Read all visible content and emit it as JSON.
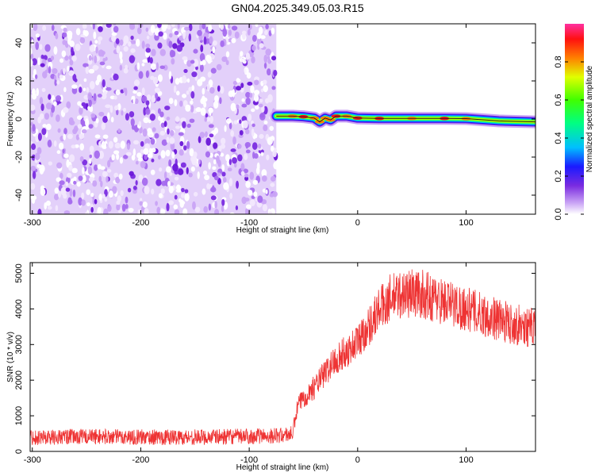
{
  "page": {
    "title": "GN04.2025.349.05.03.R15"
  },
  "chart_data": [
    {
      "type": "heatmap",
      "title": "",
      "xlabel": "Height of straight line (km)",
      "ylabel": "Frequency (Hz)",
      "xlim": [
        -302,
        164
      ],
      "ylim": [
        -50,
        50
      ],
      "x_ticks": [
        -300,
        -200,
        -100,
        0,
        100
      ],
      "y_ticks": [
        -40,
        -20,
        0,
        20,
        40
      ],
      "colorbar": {
        "label": "Normalized spectral amplitude",
        "range": [
          0,
          1
        ],
        "ticks": [
          0.0,
          0.2,
          0.4,
          0.6,
          0.8
        ],
        "colormap": "rainbow (violet-blue-cyan-green-yellow-red-magenta)"
      },
      "noise_region": {
        "x_range": [
          -302,
          -75
        ],
        "freq_range": [
          -50,
          50
        ],
        "dominant_color": "#7a2be0"
      },
      "signal_trace": {
        "x": [
          -75,
          -60,
          -50,
          -40,
          -35,
          -30,
          -25,
          -20,
          -10,
          0,
          20,
          50,
          80,
          100,
          130,
          164
        ],
        "freq": [
          1.5,
          1.5,
          1.2,
          0.5,
          -1.5,
          0.5,
          -0.5,
          1.5,
          1.5,
          0.5,
          0.3,
          0.3,
          0.3,
          0.2,
          -1.0,
          -1.5
        ],
        "peak_amplitude": [
          0.75,
          0.85,
          0.95,
          0.9,
          0.8,
          0.9,
          0.85,
          0.95,
          0.9,
          0.98,
          0.95,
          0.9,
          0.95,
          0.9,
          0.7,
          0.5
        ]
      }
    },
    {
      "type": "line",
      "title": "",
      "xlabel": "Height of straight line (km)",
      "ylabel": "SNR (10 * v/v)",
      "xlim": [
        -302,
        164
      ],
      "ylim": [
        0,
        5300
      ],
      "x_ticks": [
        -300,
        -200,
        -100,
        0,
        100
      ],
      "y_ticks": [
        0,
        1000,
        2000,
        3000,
        4000,
        5000
      ],
      "color": "#ee3333",
      "series": [
        {
          "x": [
            -302,
            -280,
            -250,
            -200,
            -150,
            -100,
            -70,
            -60,
            -55,
            -50,
            -40,
            -30,
            -20,
            -10,
            0,
            10,
            20,
            30,
            40,
            50,
            60,
            80,
            100,
            120,
            140,
            164
          ],
          "values": [
            400,
            400,
            420,
            400,
            400,
            420,
            450,
            500,
            1300,
            1500,
            1800,
            2200,
            2600,
            2800,
            3100,
            3500,
            4000,
            4300,
            4400,
            4450,
            4400,
            4200,
            4000,
            3800,
            3600,
            3450
          ]
        }
      ]
    }
  ]
}
